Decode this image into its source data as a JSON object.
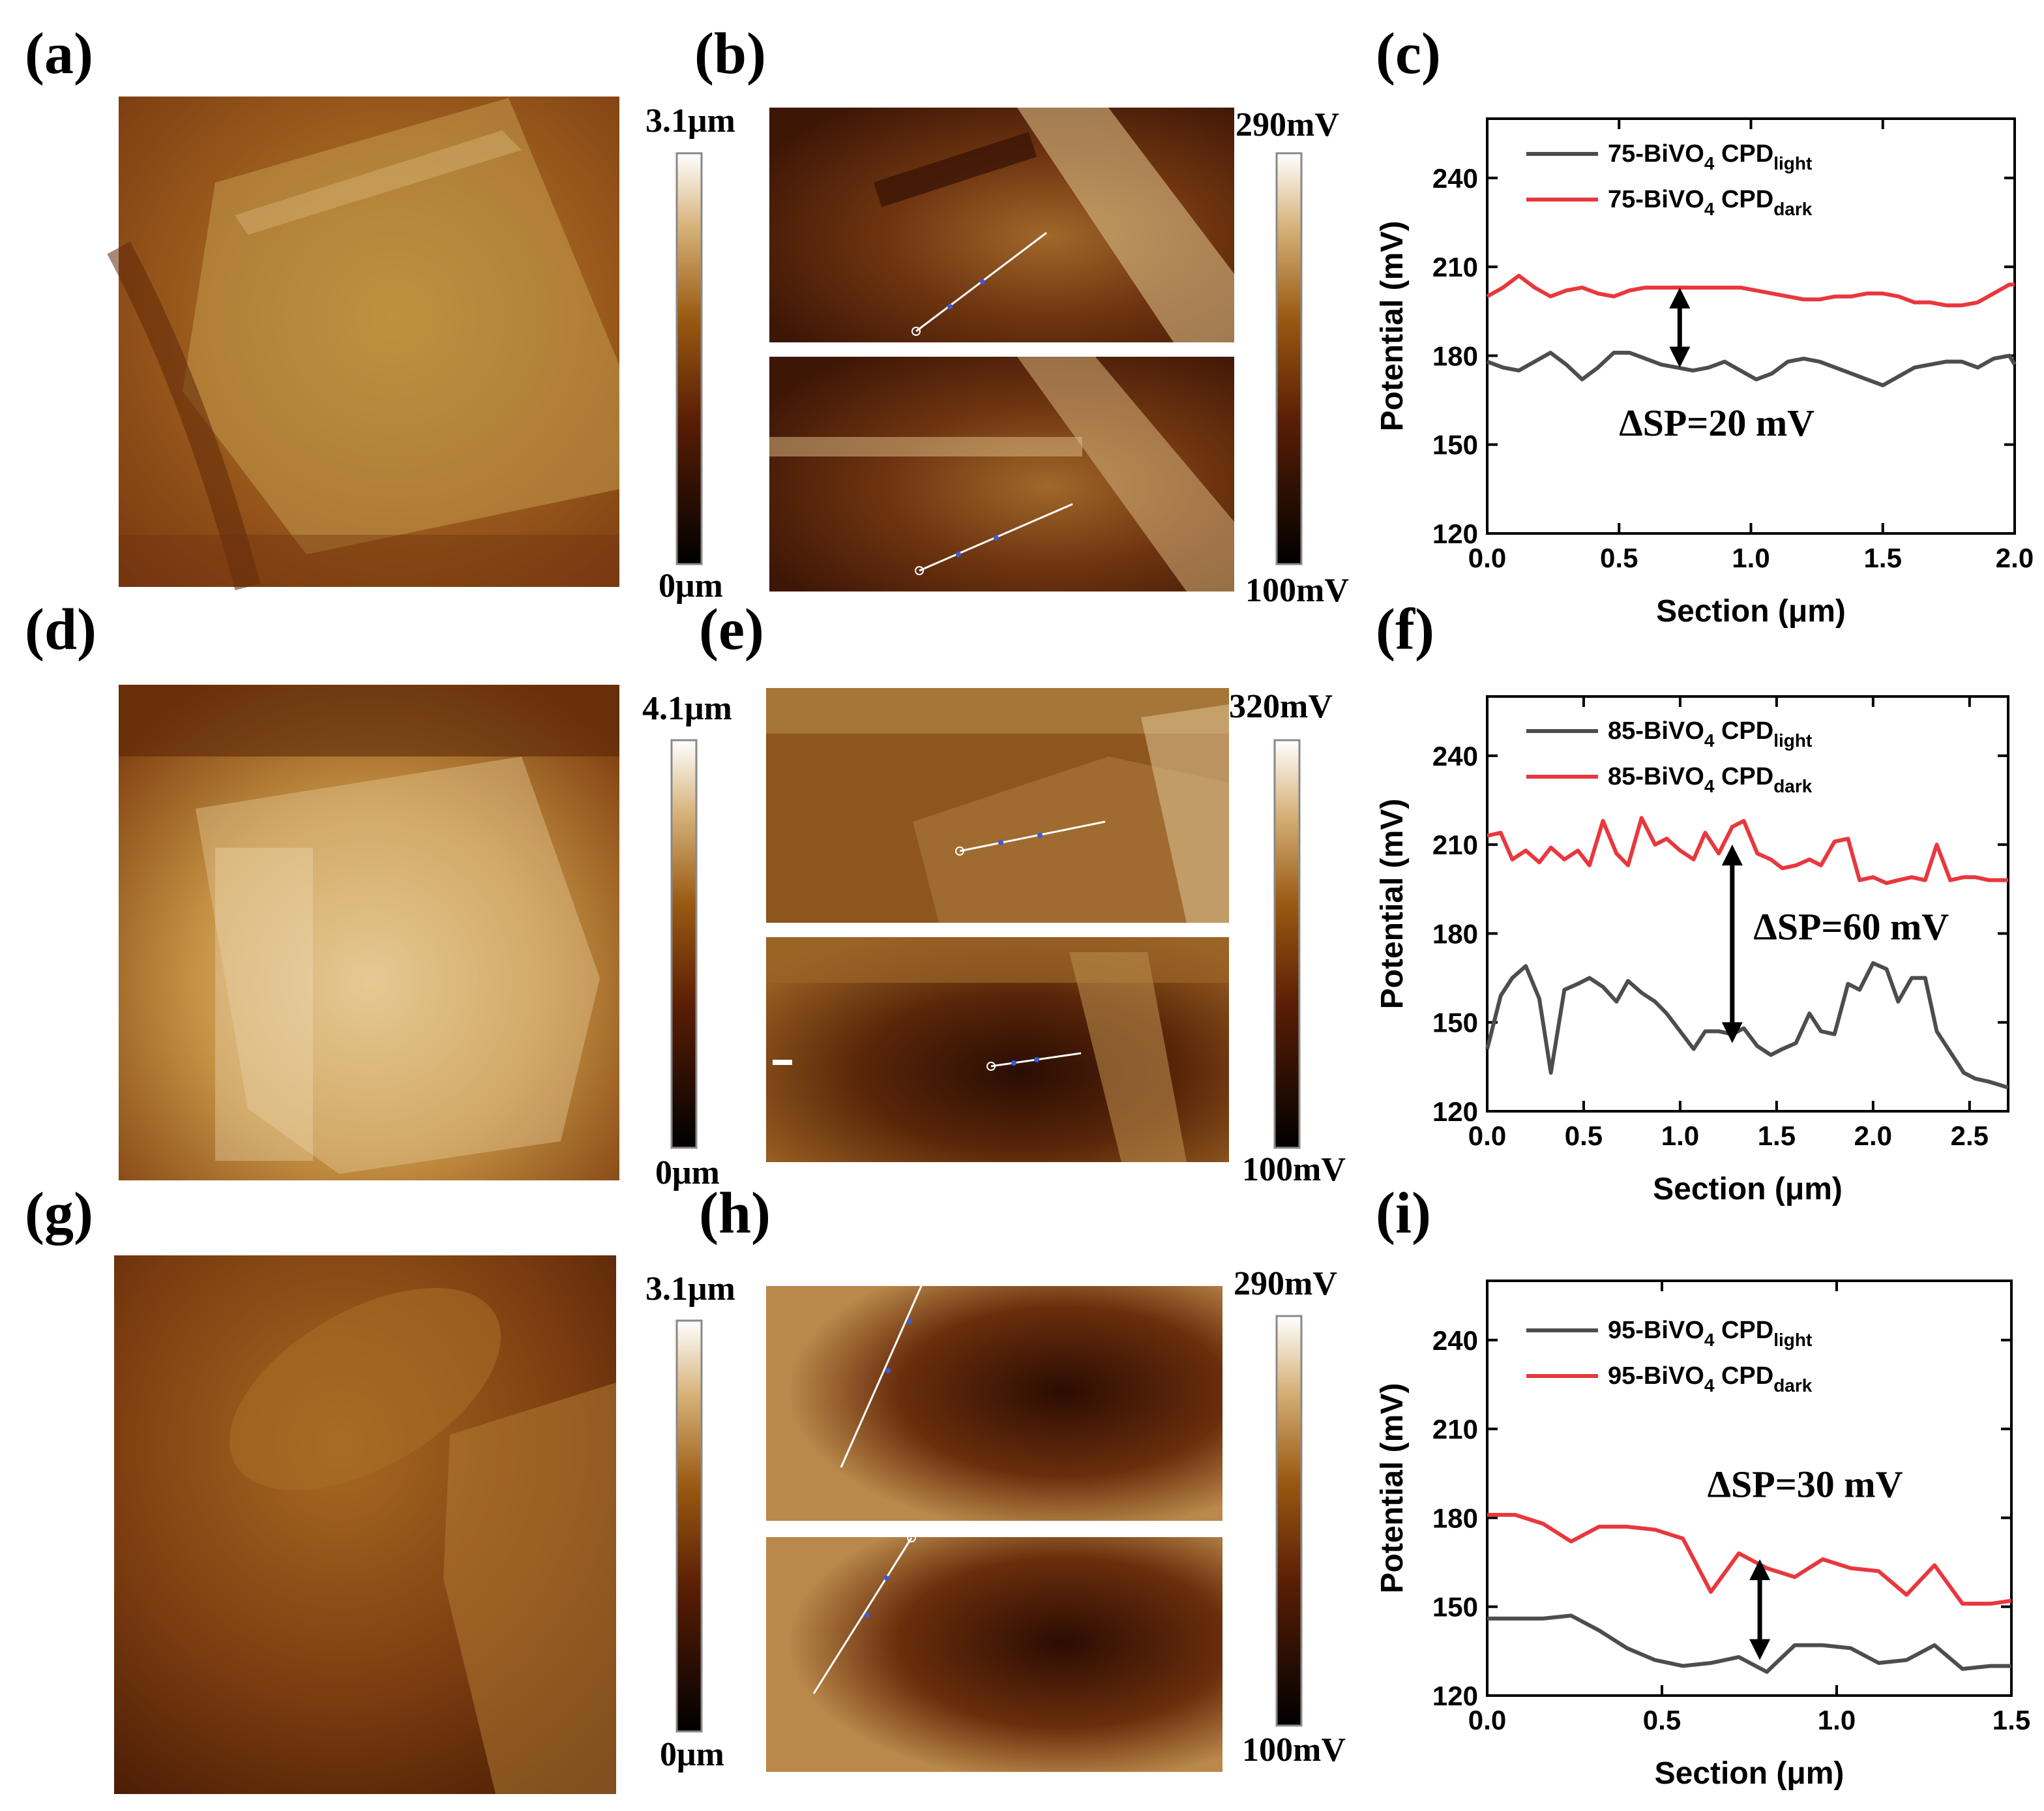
{
  "figure": {
    "panels": [
      {
        "label": "(a)",
        "scale_max": "3.1μm",
        "scale_min": "0μm"
      },
      {
        "label": "(b)",
        "scale_max": "290mV",
        "scale_min": "100mV"
      },
      {
        "label": "(d)",
        "scale_max": "4.1μm",
        "scale_min": "0μm"
      },
      {
        "label": "(e)",
        "scale_max": "320mV",
        "scale_min": "100mV"
      },
      {
        "label": "(g)",
        "scale_max": "3.1μm",
        "scale_min": "0μm"
      },
      {
        "label": "(h)",
        "scale_max": "290mV",
        "scale_min": "100mV"
      }
    ]
  },
  "colors": {
    "light": "#4d4d4d",
    "dark": "#e8383d",
    "afm_low": "#000000",
    "afm_mid": "#8a4a0a",
    "afm_high": "#ffffff"
  },
  "chart_data": [
    {
      "type": "line",
      "panel_label": "(c)",
      "xlabel": "Section (μm)",
      "ylabel": "Potential (mV)",
      "xlim": [
        0,
        2.0
      ],
      "ylim": [
        120,
        260
      ],
      "xticks": [
        "0.0",
        "0.5",
        "1.0",
        "1.5",
        "2.0"
      ],
      "yticks": [
        "120",
        "150",
        "180",
        "210",
        "240"
      ],
      "xtick_values": [
        0,
        0.5,
        1.0,
        1.5,
        2.0
      ],
      "ytick_values": [
        120,
        150,
        180,
        210,
        240
      ],
      "series": [
        {
          "name": "75-BiVO4 CPD light",
          "name_main": "75-BiVO",
          "name_sub1": "4",
          "name_mid": " CPD",
          "name_sub2": "light",
          "color_key": "light",
          "x": [
            0,
            0.06,
            0.12,
            0.18,
            0.24,
            0.3,
            0.36,
            0.42,
            0.48,
            0.54,
            0.6,
            0.66,
            0.72,
            0.78,
            0.84,
            0.9,
            0.96,
            1.02,
            1.08,
            1.14,
            1.2,
            1.26,
            1.32,
            1.38,
            1.44,
            1.5,
            1.56,
            1.62,
            1.68,
            1.74,
            1.8,
            1.86,
            1.92,
            1.98,
            2.0
          ],
          "values": [
            178,
            176,
            175,
            178,
            181,
            177,
            172,
            176,
            181,
            181,
            179,
            177,
            176,
            175,
            176,
            178,
            175,
            172,
            174,
            178,
            179,
            178,
            176,
            174,
            172,
            170,
            173,
            176,
            177,
            178,
            178,
            176,
            179,
            180,
            177
          ]
        },
        {
          "name": "75-BiVO4 CPD dark",
          "name_main": "75-BiVO",
          "name_sub1": "4",
          "name_mid": " CPD",
          "name_sub2": "dark",
          "color_key": "dark",
          "x": [
            0,
            0.06,
            0.12,
            0.18,
            0.24,
            0.3,
            0.36,
            0.42,
            0.48,
            0.54,
            0.6,
            0.66,
            0.72,
            0.78,
            0.84,
            0.9,
            0.96,
            1.02,
            1.08,
            1.14,
            1.2,
            1.26,
            1.32,
            1.38,
            1.44,
            1.5,
            1.56,
            1.62,
            1.68,
            1.74,
            1.8,
            1.86,
            1.92,
            1.98,
            2.0
          ],
          "values": [
            200,
            203,
            207,
            203,
            200,
            202,
            203,
            201,
            200,
            202,
            203,
            203,
            203,
            203,
            203,
            203,
            203,
            202,
            201,
            200,
            199,
            199,
            200,
            200,
            201,
            201,
            200,
            198,
            198,
            197,
            197,
            198,
            201,
            204,
            204
          ]
        }
      ],
      "annotation": "ΔSP=20 mV",
      "arrow": {
        "x": 0.73,
        "y_from": 176,
        "y_to": 203
      },
      "annotation_pos": {
        "x": 0.5,
        "y": 153
      }
    },
    {
      "type": "line",
      "panel_label": "(f)",
      "xlabel": "Section (μm)",
      "ylabel": "Potential (mV)",
      "xlim": [
        0,
        2.7
      ],
      "ylim": [
        120,
        260
      ],
      "xticks": [
        "0.0",
        "0.5",
        "1.0",
        "1.5",
        "2.0",
        "2.5"
      ],
      "yticks": [
        "120",
        "150",
        "180",
        "210",
        "240"
      ],
      "xtick_values": [
        0,
        0.5,
        1.0,
        1.5,
        2.0,
        2.5
      ],
      "ytick_values": [
        120,
        150,
        180,
        210,
        240
      ],
      "series": [
        {
          "name": "85-BiVO4 CPD light",
          "name_main": "85-BiVO",
          "name_sub1": "4",
          "name_mid": " CPD",
          "name_sub2": "light",
          "color_key": "light",
          "x": [
            0,
            0.07,
            0.13,
            0.2,
            0.27,
            0.33,
            0.4,
            0.47,
            0.53,
            0.6,
            0.67,
            0.73,
            0.8,
            0.87,
            0.93,
            1.0,
            1.07,
            1.13,
            1.2,
            1.27,
            1.33,
            1.4,
            1.47,
            1.53,
            1.6,
            1.67,
            1.73,
            1.8,
            1.87,
            1.93,
            2.0,
            2.07,
            2.13,
            2.2,
            2.27,
            2.33,
            2.4,
            2.47,
            2.53,
            2.6,
            2.7
          ],
          "values": [
            141,
            159,
            165,
            169,
            158,
            133,
            161,
            163,
            165,
            162,
            157,
            164,
            160,
            157,
            153,
            147,
            141,
            147,
            147,
            146,
            148,
            142,
            139,
            141,
            143,
            153,
            147,
            146,
            163,
            161,
            170,
            168,
            157,
            165,
            165,
            147,
            140,
            133,
            131,
            130,
            128
          ]
        },
        {
          "name": "85-BiVO4 CPD dark",
          "name_main": "85-BiVO",
          "name_sub1": "4",
          "name_mid": " CPD",
          "name_sub2": "dark",
          "color_key": "dark",
          "x": [
            0,
            0.07,
            0.13,
            0.2,
            0.27,
            0.33,
            0.4,
            0.47,
            0.53,
            0.6,
            0.67,
            0.73,
            0.8,
            0.87,
            0.93,
            1.0,
            1.07,
            1.13,
            1.2,
            1.27,
            1.33,
            1.4,
            1.47,
            1.53,
            1.6,
            1.67,
            1.73,
            1.8,
            1.87,
            1.93,
            2.0,
            2.07,
            2.13,
            2.2,
            2.27,
            2.33,
            2.4,
            2.47,
            2.53,
            2.6,
            2.7
          ],
          "values": [
            213,
            214,
            205,
            208,
            204,
            209,
            205,
            208,
            203,
            218,
            207,
            203,
            219,
            210,
            212,
            208,
            205,
            214,
            207,
            216,
            218,
            207,
            205,
            202,
            203,
            205,
            203,
            211,
            212,
            198,
            199,
            197,
            198,
            199,
            198,
            210,
            198,
            199,
            199,
            198,
            198
          ]
        }
      ],
      "annotation": "ΔSP=60 mV",
      "arrow": {
        "x": 1.27,
        "y_from": 143,
        "y_to": 210
      },
      "annotation_pos": {
        "x": 1.38,
        "y": 178
      }
    },
    {
      "type": "line",
      "panel_label": "(i)",
      "xlabel": "Section (μm)",
      "ylabel": "Potential (mV)",
      "xlim": [
        0,
        1.5
      ],
      "ylim": [
        120,
        260
      ],
      "xticks": [
        "0.0",
        "0.5",
        "1.0",
        "1.5"
      ],
      "yticks": [
        "120",
        "150",
        "180",
        "210",
        "240"
      ],
      "xtick_values": [
        0,
        0.5,
        1.0,
        1.5
      ],
      "ytick_values": [
        120,
        150,
        180,
        210,
        240
      ],
      "series": [
        {
          "name": "95-BiVO4 CPD light",
          "name_main": "95-BiVO",
          "name_sub1": "4",
          "name_mid": " CPD",
          "name_sub2": "light",
          "color_key": "light",
          "x": [
            0,
            0.08,
            0.16,
            0.24,
            0.32,
            0.4,
            0.48,
            0.56,
            0.64,
            0.72,
            0.8,
            0.88,
            0.96,
            1.04,
            1.12,
            1.2,
            1.28,
            1.36,
            1.44,
            1.5
          ],
          "values": [
            146,
            146,
            146,
            147,
            142,
            136,
            132,
            130,
            131,
            133,
            128,
            137,
            137,
            136,
            131,
            132,
            137,
            129,
            130,
            130
          ]
        },
        {
          "name": "95-BiVO4 CPD dark",
          "name_main": "95-BiVO",
          "name_sub1": "4",
          "name_mid": " CPD",
          "name_sub2": "dark",
          "color_key": "dark",
          "x": [
            0,
            0.08,
            0.16,
            0.24,
            0.32,
            0.4,
            0.48,
            0.56,
            0.64,
            0.72,
            0.8,
            0.88,
            0.96,
            1.04,
            1.12,
            1.2,
            1.28,
            1.36,
            1.44,
            1.5
          ],
          "values": [
            181,
            181,
            178,
            172,
            177,
            177,
            176,
            173,
            155,
            168,
            163,
            160,
            166,
            163,
            162,
            154,
            164,
            151,
            151,
            152
          ]
        }
      ],
      "annotation": "ΔSP=30 mV",
      "arrow": {
        "x": 0.78,
        "y_from": 132,
        "y_to": 166
      },
      "annotation_pos": {
        "x": 0.63,
        "y": 187
      }
    }
  ]
}
